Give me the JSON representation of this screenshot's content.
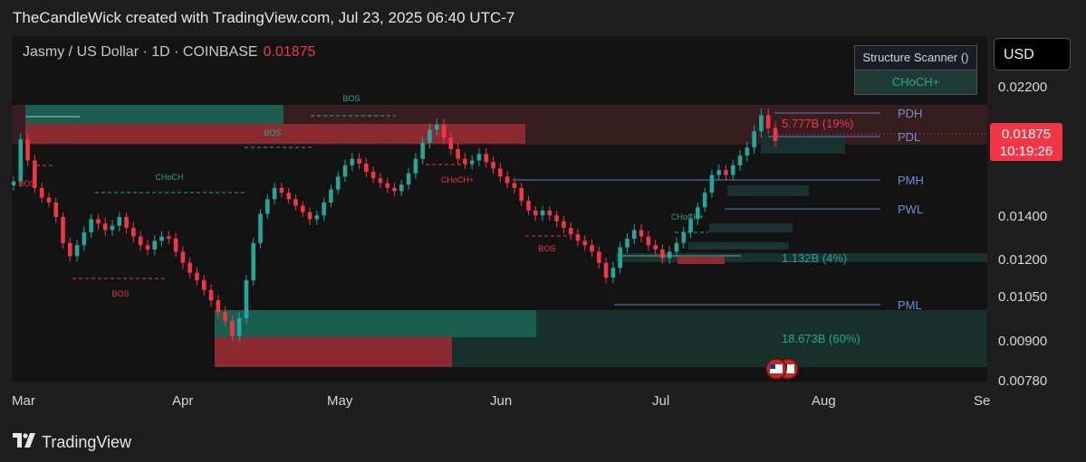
{
  "header": {
    "credit": "TheCandleWick created with TradingView.com, Jul 23, 2025 06:40 UTC-7"
  },
  "symbol": {
    "title": "Jasmy / US Dollar · 1D · COINBASE",
    "last_price": "0.01875"
  },
  "scanner": {
    "title": "Structure Scanner ()",
    "signal": "CHoCH+"
  },
  "currency_button": "USD",
  "price_tag": {
    "price": "0.01875",
    "countdown": "10:19:26"
  },
  "footer": {
    "brand": "TradingView"
  },
  "colors": {
    "up": "#26a69a",
    "down": "#f23645",
    "level": "#5b7fc7",
    "bullish_zone": "#1b5e4f",
    "bearish_zone": "#8b2a31"
  },
  "chart_data": {
    "type": "candlestick",
    "y_ticks": [
      "0.02200",
      "0.01400",
      "0.01200",
      "0.01050",
      "0.00900",
      "0.00780"
    ],
    "x_ticks": [
      "Mar",
      "Apr",
      "May",
      "Jun",
      "Jul",
      "Aug",
      "Se"
    ],
    "closes": [
      0.0162,
      0.0188,
      0.0175,
      0.0158,
      0.0152,
      0.0149,
      0.014,
      0.0128,
      0.0122,
      0.0127,
      0.0133,
      0.0139,
      0.0137,
      0.0134,
      0.0136,
      0.014,
      0.0135,
      0.0131,
      0.0127,
      0.0125,
      0.0129,
      0.0131,
      0.013,
      0.0124,
      0.0119,
      0.0115,
      0.0112,
      0.0108,
      0.0104,
      0.01,
      0.0097,
      0.0092,
      0.0098,
      0.0112,
      0.0128,
      0.0142,
      0.0151,
      0.0158,
      0.0155,
      0.0151,
      0.0147,
      0.0143,
      0.0139,
      0.0141,
      0.0149,
      0.0157,
      0.0165,
      0.0172,
      0.0176,
      0.0173,
      0.0168,
      0.0164,
      0.0161,
      0.0158,
      0.0156,
      0.016,
      0.0167,
      0.0176,
      0.0186,
      0.0194,
      0.0197,
      0.0189,
      0.0182,
      0.0176,
      0.0173,
      0.0175,
      0.0179,
      0.0174,
      0.017,
      0.0165,
      0.0161,
      0.0158,
      0.015,
      0.0144,
      0.0141,
      0.0144,
      0.0141,
      0.0138,
      0.0135,
      0.0132,
      0.0129,
      0.0127,
      0.0124,
      0.0119,
      0.0113,
      0.0117,
      0.0126,
      0.013,
      0.0134,
      0.0131,
      0.0127,
      0.0125,
      0.0121,
      0.0124,
      0.0128,
      0.0133,
      0.0139,
      0.0146,
      0.0155,
      0.0166,
      0.0169,
      0.0166,
      0.0172,
      0.0178,
      0.0183,
      0.0193,
      0.0203,
      0.0195,
      0.0187
    ],
    "levels": [
      {
        "name": "PDH",
        "value": 0.0205
      },
      {
        "name": "PDL",
        "value": 0.0189
      },
      {
        "name": "PMH",
        "value": 0.0171
      },
      {
        "name": "PWL",
        "value": 0.0153
      },
      {
        "name": "PML",
        "value": 0.0107
      }
    ],
    "structure_labels": [
      "BOS",
      "BOS",
      "CHoCH",
      "BOS",
      "CHoCH+",
      "BOS",
      "CHoCH+",
      "BOS"
    ],
    "volume_profile_labels": [
      "5.777B (19%)",
      "1.132B (4%)",
      "18.673B (60%)"
    ]
  }
}
